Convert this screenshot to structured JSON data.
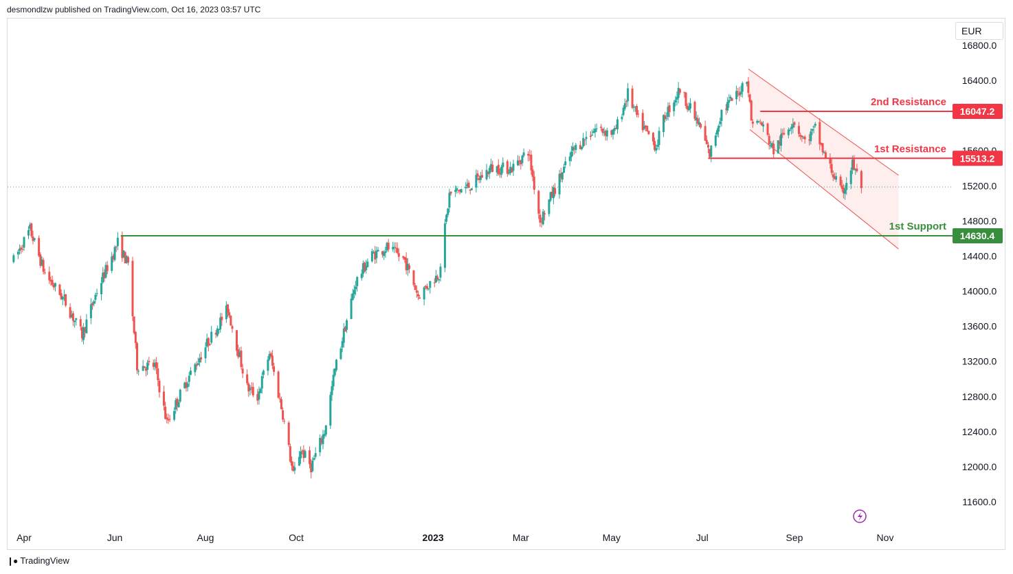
{
  "header": {
    "published": "desmondlzw published on TradingView.com, Oct 16, 2023 03:57 UTC"
  },
  "currency": "EUR",
  "footer": {
    "brand": "TradingView"
  },
  "colors": {
    "up": "#26a69a",
    "down": "#ef5350",
    "resistance": "#f23645",
    "support": "#388e3c",
    "channel_fill": "#fde8e8"
  },
  "chart_data": {
    "type": "candlestick",
    "title": "",
    "y_axis": {
      "ticks": [
        11600,
        12000,
        12400,
        12800,
        13200,
        13600,
        14000,
        14400,
        14800,
        15200,
        15600,
        16000,
        16400,
        16800
      ],
      "tick_labels": [
        "11600.0",
        "12000.0",
        "12400.0",
        "12800.0",
        "13200.0",
        "13600.0",
        "14000.0",
        "14400.0",
        "14800.0",
        "15200.0",
        "15600.0",
        "16000.0",
        "16400.0",
        "16800.0"
      ]
    },
    "x_axis": {
      "labels": [
        {
          "label": "Apr",
          "date": "2022-04-01"
        },
        {
          "label": "Jun",
          "date": "2022-06-01"
        },
        {
          "label": "Aug",
          "date": "2022-08-01"
        },
        {
          "label": "Oct",
          "date": "2022-10-01"
        },
        {
          "label": "2023",
          "date": "2023-01-01",
          "bold": true
        },
        {
          "label": "Mar",
          "date": "2023-03-01"
        },
        {
          "label": "May",
          "date": "2023-05-01"
        },
        {
          "label": "Jul",
          "date": "2023-07-01"
        },
        {
          "label": "Sep",
          "date": "2023-09-01"
        },
        {
          "label": "Nov",
          "date": "2023-11-01"
        }
      ]
    },
    "price_path": [
      [
        "2022-03-25",
        14350
      ],
      [
        "2022-04-05",
        14700
      ],
      [
        "2022-04-15",
        14200
      ],
      [
        "2022-04-28",
        13900
      ],
      [
        "2022-05-10",
        13500
      ],
      [
        "2022-05-20",
        14000
      ],
      [
        "2022-06-03",
        14550
      ],
      [
        "2022-06-10",
        14300
      ],
      [
        "2022-06-16",
        13150
      ],
      [
        "2022-06-28",
        13150
      ],
      [
        "2022-07-06",
        12500
      ],
      [
        "2022-07-20",
        13000
      ],
      [
        "2022-08-02",
        13400
      ],
      [
        "2022-08-16",
        13800
      ],
      [
        "2022-08-29",
        12900
      ],
      [
        "2022-09-05",
        12800
      ],
      [
        "2022-09-13",
        13300
      ],
      [
        "2022-09-22",
        12600
      ],
      [
        "2022-09-29",
        11900
      ],
      [
        "2022-10-04",
        12200
      ],
      [
        "2022-10-11",
        12000
      ],
      [
        "2022-10-20",
        12400
      ],
      [
        "2022-10-27",
        13100
      ],
      [
        "2022-11-10",
        14100
      ],
      [
        "2022-11-20",
        14400
      ],
      [
        "2022-12-01",
        14500
      ],
      [
        "2022-12-13",
        14350
      ],
      [
        "2022-12-22",
        13950
      ],
      [
        "2023-01-05",
        14200
      ],
      [
        "2023-01-12",
        15100
      ],
      [
        "2023-01-26",
        15200
      ],
      [
        "2023-02-09",
        15400
      ],
      [
        "2023-02-23",
        15400
      ],
      [
        "2023-03-06",
        15600
      ],
      [
        "2023-03-14",
        14800
      ],
      [
        "2023-03-22",
        15100
      ],
      [
        "2023-04-05",
        15600
      ],
      [
        "2023-04-20",
        15850
      ],
      [
        "2023-05-03",
        15800
      ],
      [
        "2023-05-12",
        16250
      ],
      [
        "2023-05-19",
        15950
      ],
      [
        "2023-05-31",
        15650
      ],
      [
        "2023-06-06",
        16000
      ],
      [
        "2023-06-16",
        16300
      ],
      [
        "2023-06-30",
        15850
      ],
      [
        "2023-07-06",
        15550
      ],
      [
        "2023-07-14",
        16050
      ],
      [
        "2023-07-25",
        16250
      ],
      [
        "2023-07-31",
        16450
      ],
      [
        "2023-08-03",
        15950
      ],
      [
        "2023-08-10",
        15900
      ],
      [
        "2023-08-18",
        15600
      ],
      [
        "2023-08-31",
        15950
      ],
      [
        "2023-09-08",
        15700
      ],
      [
        "2023-09-15",
        15850
      ],
      [
        "2023-09-21",
        15550
      ],
      [
        "2023-09-28",
        15300
      ],
      [
        "2023-10-03",
        15100
      ],
      [
        "2023-10-10",
        15450
      ],
      [
        "2023-10-16",
        15200
      ]
    ],
    "last_price": 15186,
    "levels": [
      {
        "name": "2nd Resistance",
        "price": 16047.2,
        "label": "16047.2",
        "from": "2023-08-09",
        "kind": "resistance"
      },
      {
        "name": "1st Resistance",
        "price": 15513.2,
        "label": "15513.2",
        "from": "2023-07-05",
        "kind": "resistance"
      },
      {
        "name": "1st Support",
        "price": 14630.4,
        "label": "14630.4",
        "from": "2022-06-05",
        "kind": "support"
      }
    ],
    "channel": {
      "upper": {
        "from": [
          "2023-08-01",
          16530
        ],
        "to": [
          "2023-11-10",
          15320
        ]
      },
      "lower": {
        "from": [
          "2023-08-02",
          15840
        ],
        "to": [
          "2023-11-10",
          14480
        ]
      }
    }
  }
}
